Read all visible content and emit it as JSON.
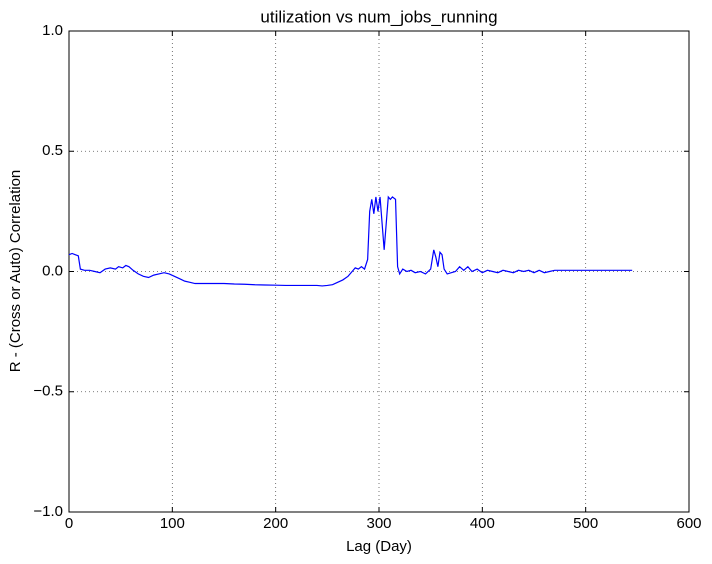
{
  "chart_data": {
    "type": "line",
    "title": "utilization vs num_jobs_running",
    "x_label": "Lag (Day)",
    "y_label": "R - (Cross or Auto) Correlation",
    "xlim": [
      0,
      600
    ],
    "xticks": [
      0,
      100,
      200,
      300,
      400,
      500,
      600
    ],
    "ylim": [
      -1,
      1
    ],
    "yticks": [
      {
        "value": -1,
        "label": "−1.0"
      },
      {
        "value": -0.5,
        "label": "−0.5"
      },
      {
        "value": 0,
        "label": "0.0"
      },
      {
        "value": 0.5,
        "label": "0.5"
      },
      {
        "value": 1,
        "label": "1.0"
      }
    ],
    "grid": true,
    "series": [
      {
        "color": "#0000ff",
        "x": [
          0,
          3,
          6,
          9,
          11,
          15,
          20,
          25,
          30,
          35,
          40,
          45,
          48,
          52,
          55,
          58,
          62,
          67,
          72,
          77,
          82,
          87,
          92,
          97,
          102,
          107,
          112,
          117,
          122,
          130,
          140,
          150,
          160,
          170,
          180,
          190,
          200,
          210,
          220,
          230,
          240,
          245,
          250,
          255,
          260,
          265,
          270,
          274,
          277,
          280,
          283,
          286,
          289,
          291,
          293,
          295,
          297,
          299,
          301,
          303,
          305,
          307,
          309,
          311,
          313,
          316,
          318,
          320,
          323,
          327,
          331,
          335,
          340,
          345,
          350,
          353,
          355,
          357,
          359,
          361,
          363,
          366,
          370,
          374,
          378,
          382,
          386,
          390,
          395,
          400,
          405,
          410,
          415,
          420,
          425,
          430,
          435,
          440,
          445,
          450,
          455,
          460,
          465,
          470,
          480,
          500,
          520,
          545
        ],
        "values": [
          0.07,
          0.075,
          0.07,
          0.065,
          0.01,
          0.005,
          0.005,
          0.0,
          -0.005,
          0.01,
          0.015,
          0.01,
          0.02,
          0.015,
          0.025,
          0.02,
          0.005,
          -0.01,
          -0.02,
          -0.025,
          -0.015,
          -0.01,
          -0.005,
          -0.01,
          -0.02,
          -0.03,
          -0.04,
          -0.045,
          -0.05,
          -0.05,
          -0.05,
          -0.05,
          -0.052,
          -0.053,
          -0.055,
          -0.056,
          -0.057,
          -0.058,
          -0.058,
          -0.058,
          -0.058,
          -0.06,
          -0.058,
          -0.055,
          -0.045,
          -0.035,
          -0.02,
          0.0,
          0.015,
          0.01,
          0.02,
          0.01,
          0.05,
          0.25,
          0.3,
          0.24,
          0.31,
          0.25,
          0.31,
          0.2,
          0.09,
          0.2,
          0.31,
          0.3,
          0.31,
          0.3,
          0.02,
          -0.01,
          0.01,
          0.0,
          0.005,
          -0.005,
          0.0,
          -0.01,
          0.01,
          0.09,
          0.06,
          0.02,
          0.08,
          0.07,
          0.01,
          -0.01,
          -0.005,
          0.0,
          0.02,
          0.005,
          0.02,
          0.0,
          0.01,
          -0.005,
          0.005,
          0.0,
          -0.005,
          0.005,
          0.0,
          -0.005,
          0.005,
          0.0,
          0.005,
          -0.005,
          0.005,
          -0.005,
          0.0,
          0.005,
          0.005,
          0.005,
          0.005,
          0.005
        ]
      }
    ]
  }
}
